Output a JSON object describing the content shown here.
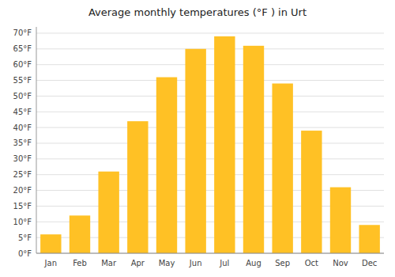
{
  "chart_data": {
    "type": "bar",
    "title": "Average monthly temperatures (°F ) in Urt",
    "categories": [
      "Jan",
      "Feb",
      "Mar",
      "Apr",
      "May",
      "Jun",
      "Jul",
      "Aug",
      "Sep",
      "Oct",
      "Nov",
      "Dec"
    ],
    "values": [
      6,
      12,
      26,
      42,
      56,
      65,
      69,
      66,
      54,
      39,
      21,
      9
    ],
    "color": "#FFC125",
    "ylim": [
      0,
      72
    ],
    "yticks": [
      {
        "value": 0,
        "label": "0°F"
      },
      {
        "value": 5,
        "label": "5°F"
      },
      {
        "value": 10,
        "label": "10°F"
      },
      {
        "value": 15,
        "label": "15°F"
      },
      {
        "value": 20,
        "label": "20°F"
      },
      {
        "value": 25,
        "label": "25°F"
      },
      {
        "value": 30,
        "label": "30°F"
      },
      {
        "value": 35,
        "label": "35°F"
      },
      {
        "value": 40,
        "label": "40°F"
      },
      {
        "value": 45,
        "label": "45°F"
      },
      {
        "value": 50,
        "label": "50°F"
      },
      {
        "value": 55,
        "label": "55°F"
      },
      {
        "value": 60,
        "label": "60°F"
      },
      {
        "value": 65,
        "label": "65°F"
      },
      {
        "value": 70,
        "label": "70°F"
      }
    ],
    "grid": true
  }
}
